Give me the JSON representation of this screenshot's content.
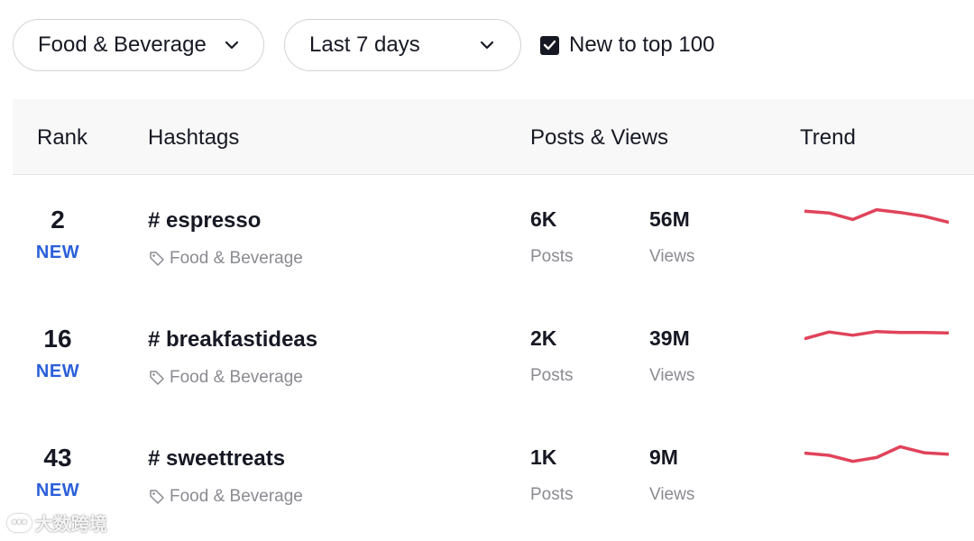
{
  "filters": {
    "industry": "Food & Beverage",
    "period": "Last 7 days",
    "new_to_top_label": "New to top 100",
    "new_to_top_checked": true
  },
  "table": {
    "headers": {
      "rank": "Rank",
      "hashtags": "Hashtags",
      "posts_views": "Posts & Views",
      "trend": "Trend"
    },
    "rows": [
      {
        "rank": "2",
        "badge": "NEW",
        "hashtag": "# espresso",
        "category": "Food & Beverage",
        "posts": "6K",
        "posts_label": "Posts",
        "views": "56M",
        "views_label": "Views",
        "trend": [
          0.78,
          0.7,
          0.4,
          0.85,
          0.72,
          0.55,
          0.28
        ]
      },
      {
        "rank": "16",
        "badge": "NEW",
        "hashtag": "# breakfastideas",
        "category": "Food & Beverage",
        "posts": "2K",
        "posts_label": "Posts",
        "views": "39M",
        "views_label": "Views",
        "trend": [
          0.4,
          0.7,
          0.55,
          0.72,
          0.68,
          0.68,
          0.66
        ]
      },
      {
        "rank": "43",
        "badge": "NEW",
        "hashtag": "# sweettreats",
        "category": "Food & Beverage",
        "posts": "1K",
        "posts_label": "Posts",
        "views": "9M",
        "views_label": "Views",
        "trend": [
          0.6,
          0.5,
          0.22,
          0.4,
          0.9,
          0.62,
          0.55
        ]
      }
    ]
  },
  "watermark": "大数跨境",
  "icons": {
    "chevron": "chevron-down-icon",
    "check": "check-icon",
    "tag": "tag-icon"
  },
  "colors": {
    "trend_line": "#e0435a",
    "new_badge": "#2b5fd9",
    "text_primary": "#161823",
    "text_secondary": "#8a8b91"
  }
}
